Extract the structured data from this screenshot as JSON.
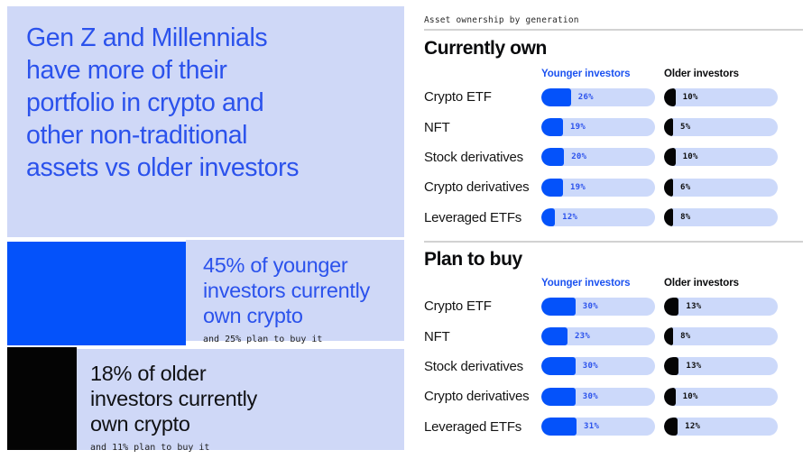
{
  "left_panel": {
    "headline": "Gen Z and Millennials\nhave more of their\nportfolio in crypto and\nother non-traditional\nassets vs older investors",
    "younger_stat": {
      "text": "45% of younger\ninvestors currently\nown crypto",
      "subtext": "and 25% plan to buy it"
    },
    "older_stat": {
      "text": "18% of older\ninvestors currently\nown crypto",
      "subtext": "and 11% plan to buy it"
    }
  },
  "right_panel": {
    "eyebrow": "Asset ownership by generation"
  },
  "colors": {
    "brand_blue": "#0452FA",
    "headline_blue": "#2B52EC",
    "panel_light": "#CFD8F7",
    "bar_track": "#CCD9FA",
    "black": "#040404"
  },
  "chart_data": [
    {
      "type": "bar",
      "title": "Currently own",
      "orientation": "horizontal",
      "unit": "%",
      "xlim": [
        0,
        100
      ],
      "categories": [
        "Crypto ETF",
        "NFT",
        "Stock derivatives",
        "Crypto derivatives",
        "Leveraged ETFs"
      ],
      "series": [
        {
          "name": "Younger investors",
          "color": "#0452FA",
          "values": [
            26,
            19,
            20,
            19,
            12
          ]
        },
        {
          "name": "Older investors",
          "color": "#050505",
          "values": [
            10,
            5,
            10,
            6,
            8
          ]
        }
      ]
    },
    {
      "type": "bar",
      "title": "Plan to buy",
      "orientation": "horizontal",
      "unit": "%",
      "xlim": [
        0,
        100
      ],
      "categories": [
        "Crypto ETF",
        "NFT",
        "Stock derivatives",
        "Crypto derivatives",
        "Leveraged ETFs"
      ],
      "series": [
        {
          "name": "Younger investors",
          "color": "#0452FA",
          "values": [
            30,
            23,
            30,
            30,
            31
          ]
        },
        {
          "name": "Older investors",
          "color": "#050505",
          "values": [
            13,
            8,
            13,
            10,
            12
          ]
        }
      ]
    }
  ]
}
